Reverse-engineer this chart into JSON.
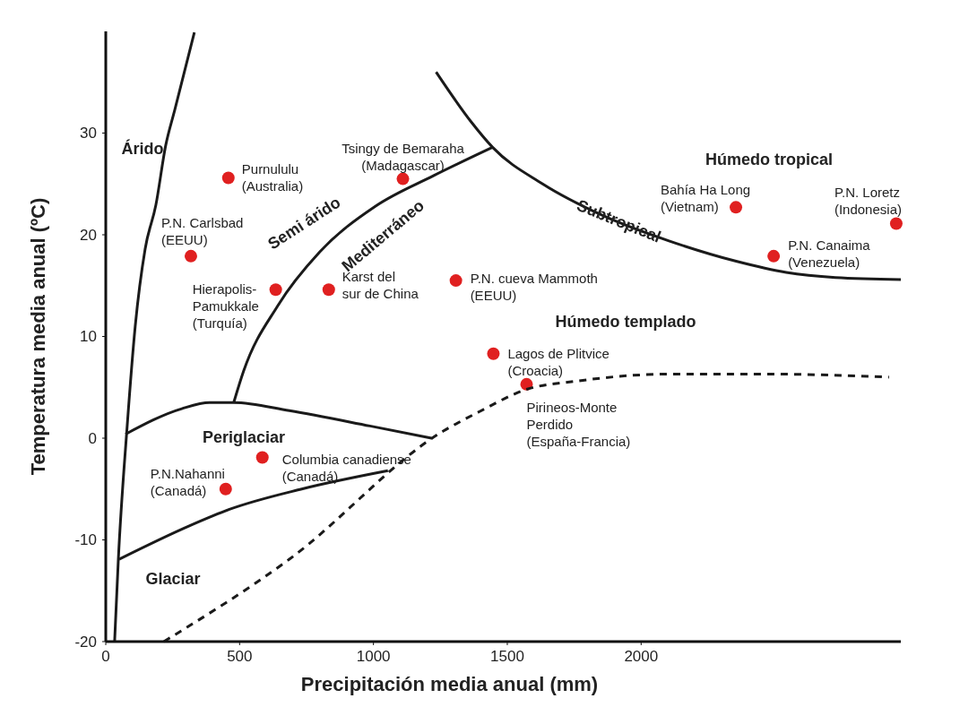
{
  "chart_data": {
    "type": "scatter",
    "xlabel": "Precipitación media anual (mm)",
    "ylabel": "Temperatura media anual (ºC)",
    "xlim": [
      0,
      2970
    ],
    "ylim": [
      -20,
      40
    ],
    "xticks": [
      0,
      500,
      1000,
      1500,
      2000
    ],
    "yticks": [
      -20,
      -10,
      0,
      10,
      20,
      30
    ],
    "grid": false,
    "marker": "circle",
    "series": [
      {
        "name": "Purnululu\n(Australia)",
        "color": "#e02020",
        "x": [
          458
        ],
        "values": [
          25.6
        ]
      },
      {
        "name": "Tsingy de Bemaraha\n(Madagascar)",
        "color": "#e02020",
        "x": [
          1110
        ],
        "values": [
          25.5
        ]
      },
      {
        "name": "P.N. Carlsbad\n(EEUU)",
        "color": "#e02020",
        "x": [
          318
        ],
        "values": [
          17.9
        ]
      },
      {
        "name": "Hierapolis-\nPamukkale\n(Turquía)",
        "color": "#e02020",
        "x": [
          635
        ],
        "values": [
          14.6
        ]
      },
      {
        "name": "Karst del\nsur de China",
        "color": "#e02020",
        "x": [
          833
        ],
        "values": [
          14.6
        ]
      },
      {
        "name": "P.N. cueva Mammoth\n(EEUU)",
        "color": "#e02020",
        "x": [
          1308
        ],
        "values": [
          15.5
        ]
      },
      {
        "name": "Bahía Ha Long\n(Vietnam)",
        "color": "#e02020",
        "x": [
          2354
        ],
        "values": [
          22.7
        ]
      },
      {
        "name": "P.N. Loretz\n(Indonesia)",
        "color": "#e02020",
        "x": [
          2953
        ],
        "values": [
          21.1
        ]
      },
      {
        "name": "P.N. Canaima\n(Venezuela)",
        "color": "#e02020",
        "x": [
          2495
        ],
        "values": [
          17.9
        ]
      },
      {
        "name": "Lagos de Plitvice\n(Croacia)",
        "color": "#e02020",
        "x": [
          1448
        ],
        "values": [
          8.3
        ]
      },
      {
        "name": "Pirineos-Monte\nPerdido\n(España-Francia)",
        "color": "#e02020",
        "x": [
          1572
        ],
        "values": [
          5.3
        ]
      },
      {
        "name": "Columbia canadiense\n(Canadá)",
        "color": "#e02020",
        "x": [
          585
        ],
        "values": [
          -1.9
        ]
      },
      {
        "name": "P.N.Nahanni\n(Canadá)",
        "color": "#e02020",
        "x": [
          448
        ],
        "values": [
          -5.0
        ]
      },
      {
        "type": "line",
        "color": "#1a1a1a",
        "marker": "none",
        "line_style": "solid",
        "x": [
          33,
          47,
          80,
          110,
          147,
          187,
          224,
          258,
          331
        ],
        "values": [
          -20,
          -11.9,
          1.2,
          11.0,
          18.6,
          22.9,
          28.8,
          32.3,
          39.9
        ]
      },
      {
        "type": "line",
        "color": "#1a1a1a",
        "marker": "none",
        "line_style": "solid",
        "x": [
          478,
          515,
          642,
          799,
          1007,
          1224,
          1445
        ],
        "values": [
          3.5,
          6.6,
          13.0,
          18.3,
          22.8,
          25.8,
          28.6
        ]
      },
      {
        "type": "line",
        "color": "#1a1a1a",
        "marker": "none",
        "line_style": "solid",
        "x": [
          1234,
          1365,
          1445,
          1632,
          1856,
          2104,
          2355,
          2542,
          2726,
          2970
        ],
        "values": [
          36.0,
          31.1,
          28.6,
          25.0,
          21.9,
          19.4,
          17.4,
          16.3,
          15.8,
          15.6
        ]
      },
      {
        "type": "line",
        "color": "#1a1a1a",
        "marker": "none",
        "line_style": "solid",
        "x": [
          74,
          284,
          388,
          478,
          686,
          987,
          1217
        ],
        "values": [
          0.4,
          2.9,
          3.5,
          3.5,
          2.7,
          1.2,
          0.0
        ]
      },
      {
        "type": "line",
        "color": "#1a1a1a",
        "marker": "none",
        "line_style": "solid",
        "x": [
          50,
          314,
          462,
          732,
          1054
        ],
        "values": [
          -11.9,
          -8.6,
          -7.0,
          -5.0,
          -3.2
        ]
      },
      {
        "type": "line",
        "color": "#1a1a1a",
        "marker": "none",
        "line_style": "dashed",
        "x": [
          217,
          686,
          1261,
          1395,
          1572,
          1756,
          2104,
          2478,
          2926
        ],
        "values": [
          -20,
          -11.9,
          0.7,
          2.6,
          4.8,
          5.6,
          6.3,
          6.3,
          6.0
        ]
      }
    ],
    "annotations": [
      "Árido",
      "Semi árido",
      "Mediterráneo",
      "Subtropical",
      "Húmedo tropical",
      "Húmedo templado",
      "Periglaciar",
      "Glaciar"
    ]
  }
}
